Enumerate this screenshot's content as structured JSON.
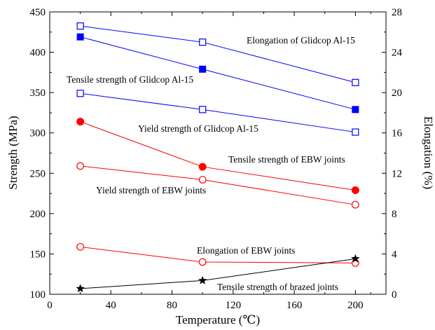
{
  "chart_data": {
    "type": "line",
    "xlabel": "Temperature (℃)",
    "ylabel_left": "Strength (MPa)",
    "ylabel_right": "Elongation (%)",
    "xlim": [
      0,
      220
    ],
    "ylim_left": [
      100,
      450
    ],
    "ylim_right": [
      0,
      28
    ],
    "x_ticks": [
      "0",
      "40",
      "80",
      "120",
      "160",
      "200"
    ],
    "y_left_ticks": [
      "100",
      "150",
      "200",
      "250",
      "300",
      "350",
      "400",
      "450"
    ],
    "y_right_ticks": [
      "0",
      "4",
      "8",
      "12",
      "16",
      "20",
      "24",
      "28"
    ],
    "grid": false,
    "series": [
      {
        "name": "Elongation of Glidcop Al-15",
        "axis": "right",
        "color": "#0000ff",
        "marker": "open-square",
        "x": [
          20,
          100,
          200
        ],
        "y": [
          26.6,
          25.0,
          21.0
        ]
      },
      {
        "name": "Tensile strength of Glidcop Al-15",
        "axis": "left",
        "color": "#0000ff",
        "marker": "filled-square",
        "x": [
          20,
          100,
          200
        ],
        "y": [
          419,
          379,
          329
        ]
      },
      {
        "name": "Yield strength of Glidcop Al-15",
        "axis": "left",
        "color": "#0000ff",
        "marker": "open-square",
        "x": [
          20,
          100,
          200
        ],
        "y": [
          349,
          329,
          301
        ]
      },
      {
        "name": "Tensile strength of EBW joints",
        "axis": "left",
        "color": "#ff0000",
        "marker": "filled-circle",
        "x": [
          20,
          100,
          200
        ],
        "y": [
          314,
          258,
          229
        ]
      },
      {
        "name": "Yield strength of EBW joints",
        "axis": "left",
        "color": "#ff0000",
        "marker": "open-circle",
        "x": [
          20,
          100,
          200
        ],
        "y": [
          259,
          242,
          211
        ]
      },
      {
        "name": "Elongation of EBW joints",
        "axis": "right",
        "color": "#ff0000",
        "marker": "open-circle",
        "x": [
          20,
          100,
          200
        ],
        "y": [
          4.7,
          3.2,
          3.1
        ]
      },
      {
        "name": "Tensile strength of brazed joints",
        "axis": "left",
        "color": "#000000",
        "marker": "filled-star",
        "x": [
          20,
          100,
          200
        ],
        "y": [
          107,
          117,
          144
        ]
      }
    ]
  }
}
